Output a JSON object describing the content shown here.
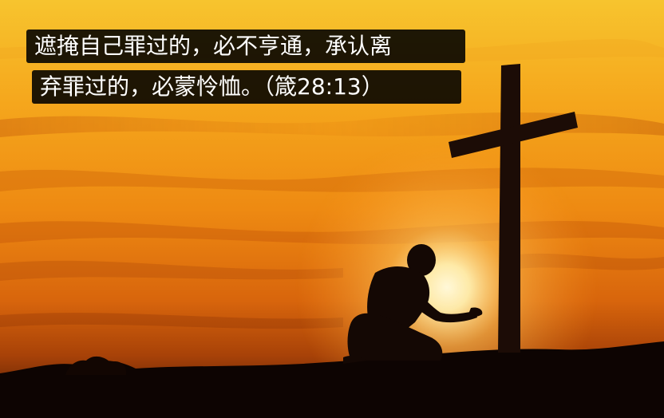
{
  "caption": {
    "line1": "遮掩自己罪过的，必不亨通，承认离",
    "line2": "弃罪过的，必蒙怜恤。（箴28:13）"
  },
  "scene": {
    "subject": "kneeling-person-silhouette",
    "object": "wooden-cross-silhouette",
    "sky_colors": [
      "#f6b826",
      "#f08a12",
      "#b8400a",
      "#5a1a06"
    ],
    "sun_color": "#fff3c4"
  }
}
